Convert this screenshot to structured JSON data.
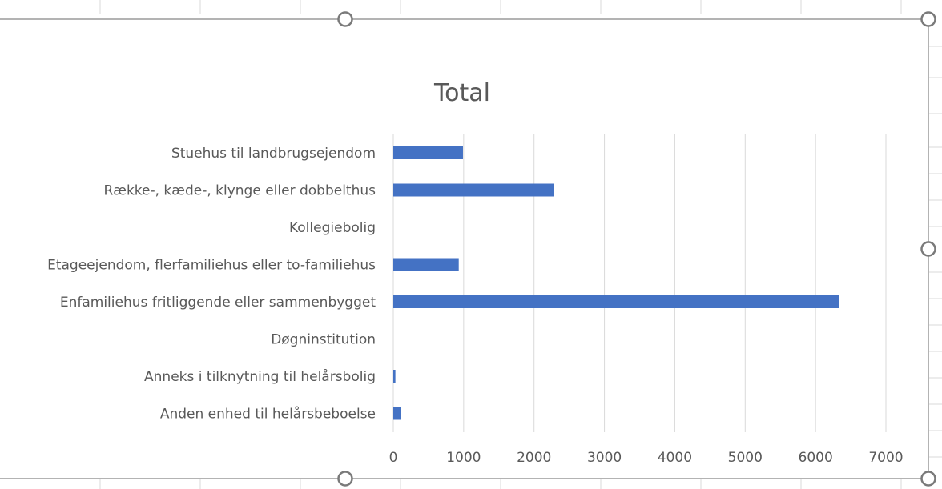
{
  "chart_data": {
    "type": "bar",
    "orientation": "horizontal",
    "title": "Total",
    "categories": [
      "Stuehus til landbrugsejendom",
      "Række-, kæde-, klynge eller dobbelthus",
      "Kollegiebolig",
      "Etageejendom, flerfamiliehus eller to-familiehus",
      "Enfamiliehus fritliggende eller sammenbygget",
      "Døgninstitution",
      "Anneks i tilknytning til helårsbolig",
      "Anden enhed til helårsbeboelse"
    ],
    "values": [
      990,
      2280,
      0,
      930,
      6330,
      0,
      30,
      110
    ],
    "xlim": [
      0,
      7000
    ],
    "xticks": [
      "0",
      "1000",
      "2000",
      "3000",
      "4000",
      "5000",
      "6000",
      "7000"
    ],
    "grid": true,
    "legend": "none",
    "bar_color": "#4472c4"
  }
}
